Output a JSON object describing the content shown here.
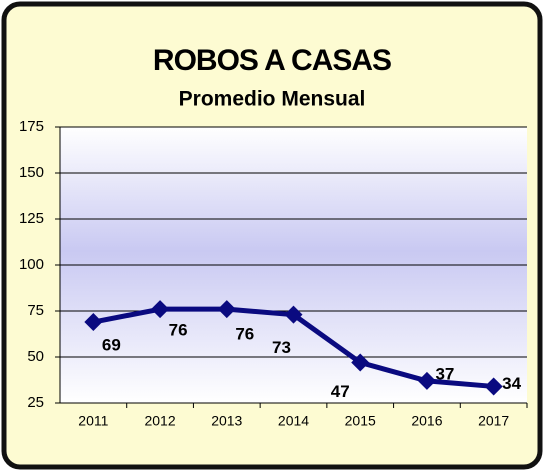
{
  "chart_data": {
    "type": "line",
    "title": "ROBOS A CASAS",
    "subtitle": "Promedio Mensual",
    "categories": [
      "2011",
      "2012",
      "2013",
      "2014",
      "2015",
      "2016",
      "2017"
    ],
    "series": [
      {
        "name": "Robos a casas",
        "color": "#0a0a80",
        "values": [
          69,
          76,
          76,
          73,
          47,
          37,
          34
        ]
      }
    ],
    "ylim": [
      25,
      175
    ],
    "yticks": [
      25,
      50,
      75,
      100,
      125,
      150,
      175
    ],
    "grid": true
  }
}
